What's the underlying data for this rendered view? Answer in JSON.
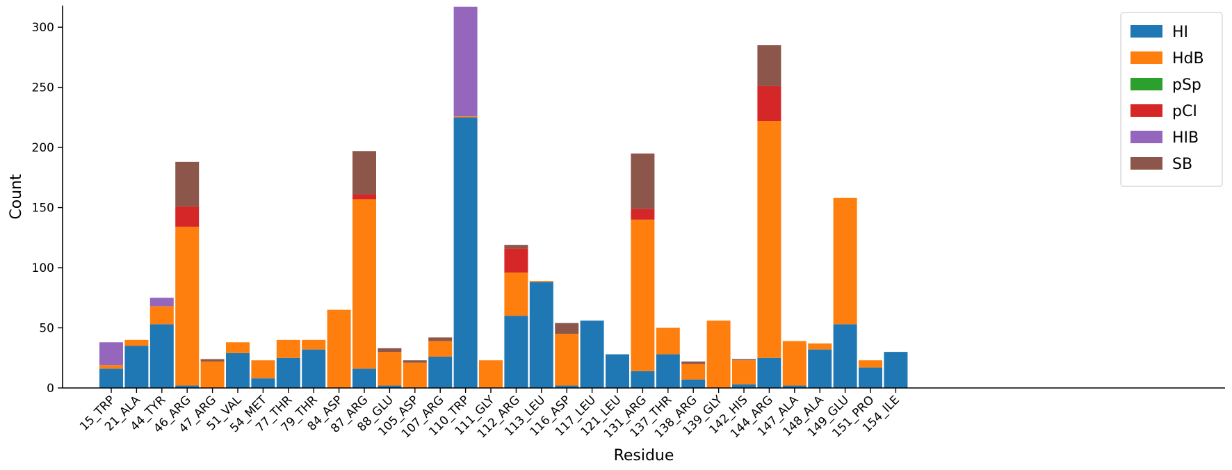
{
  "chart_data": {
    "type": "bar",
    "stacked": true,
    "title": "",
    "xlabel": "Residue",
    "ylabel": "Count",
    "ylim": [
      0,
      318
    ],
    "yticks": [
      0,
      50,
      100,
      150,
      200,
      250,
      300
    ],
    "grid": false,
    "legend_position": "top-right",
    "categories": [
      "15_TRP",
      "21_ALA",
      "44_TYR",
      "46_ARG",
      "47_ARG",
      "51_VAL",
      "54_MET",
      "77_THR",
      "79_THR",
      "84_ASP",
      "87_ARG",
      "88_GLU",
      "105_ASP",
      "107_ARG",
      "110_TRP",
      "111_GLY",
      "112_ARG",
      "113_LEU",
      "116_ASP",
      "117_LEU",
      "121_LEU",
      "131_ARG",
      "137_THR",
      "138_ARG",
      "139_GLY",
      "142_HIS",
      "144_ARG",
      "147_ALA",
      "148_ALA",
      "149_GLU",
      "151_PRO",
      "154_ILE"
    ],
    "series": [
      {
        "name": "HI",
        "color": "#1f77b4",
        "values": [
          16,
          35,
          53,
          2,
          0,
          29,
          8,
          25,
          32,
          0,
          16,
          2,
          0,
          26,
          225,
          0,
          60,
          88,
          2,
          56,
          28,
          14,
          28,
          7,
          0,
          3,
          25,
          2,
          32,
          53,
          17,
          30
        ]
      },
      {
        "name": "HdB",
        "color": "#ff7f0e",
        "values": [
          3,
          5,
          15,
          132,
          22,
          9,
          15,
          15,
          8,
          65,
          141,
          28,
          21,
          13,
          1,
          23,
          36,
          1,
          43,
          0,
          0,
          126,
          22,
          13,
          56,
          20,
          197,
          37,
          5,
          105,
          6,
          0
        ]
      },
      {
        "name": "pSp",
        "color": "#2ca02c",
        "values": [
          0,
          0,
          0,
          0,
          0,
          0,
          0,
          0,
          0,
          0,
          0,
          0,
          0,
          0,
          0,
          0,
          0,
          0,
          0,
          0,
          0,
          0,
          0,
          0,
          0,
          0,
          0,
          0,
          0,
          0,
          0,
          0
        ]
      },
      {
        "name": "pCI",
        "color": "#d62728",
        "values": [
          0,
          0,
          0,
          17,
          0,
          0,
          0,
          0,
          0,
          0,
          4,
          0,
          0,
          0,
          0,
          0,
          20,
          0,
          0,
          0,
          0,
          9,
          0,
          0,
          0,
          0,
          29,
          0,
          0,
          0,
          0,
          0
        ]
      },
      {
        "name": "HIB",
        "color": "#9467bd",
        "values": [
          19,
          0,
          7,
          0,
          0,
          0,
          0,
          0,
          0,
          0,
          0,
          0,
          0,
          0,
          91,
          0,
          0,
          0,
          0,
          0,
          0,
          0,
          0,
          0,
          0,
          0,
          0,
          0,
          0,
          0,
          0,
          0
        ]
      },
      {
        "name": "SB",
        "color": "#8c564b",
        "values": [
          0,
          0,
          0,
          37,
          2,
          0,
          0,
          0,
          0,
          0,
          36,
          3,
          2,
          3,
          0,
          0,
          3,
          0,
          9,
          0,
          0,
          46,
          0,
          2,
          0,
          1,
          34,
          0,
          0,
          0,
          0,
          0
        ]
      }
    ]
  }
}
